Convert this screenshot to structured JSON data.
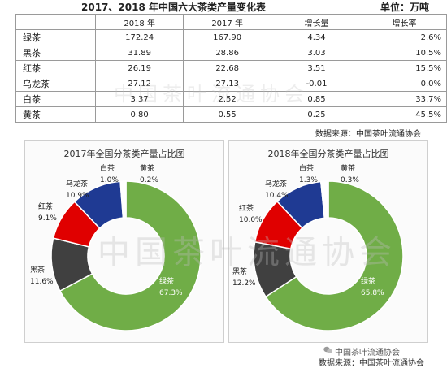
{
  "header": {
    "title": "2017、2018 年中国六大茶类产量变化表",
    "unit": "单位：万吨"
  },
  "table": {
    "columns": [
      "",
      "2018 年",
      "2017 年",
      "增长量",
      "增长率"
    ],
    "rows": [
      [
        "绿茶",
        "172.24",
        "167.90",
        "4.34",
        "2.6%"
      ],
      [
        "黑茶",
        "31.89",
        "28.86",
        "3.03",
        "10.5%"
      ],
      [
        "红茶",
        "26.19",
        "22.68",
        "3.51",
        "15.5%"
      ],
      [
        "乌龙茶",
        "27.12",
        "27.13",
        "-0.01",
        "0.0%"
      ],
      [
        "白茶",
        "3.37",
        "2.52",
        "0.85",
        "33.7%"
      ],
      [
        "黄茶",
        "0.80",
        "0.55",
        "0.25",
        "45.5%"
      ]
    ]
  },
  "source_top": "数据来源：中国茶叶流通协会",
  "watermark": "中国茶叶流通协会",
  "footer": {
    "brand": "中国茶叶流通协会",
    "source": "数据来源：中国茶叶流通协会"
  },
  "colors": {
    "green": "#70ad47",
    "black": "#404040",
    "red": "#e00000",
    "oolong": "#1f3a93",
    "white": "#ffffff",
    "yellow": "#f2c200"
  },
  "chart_data": [
    {
      "type": "pie",
      "title": "2017年全国分茶类产量占比图",
      "slices": [
        {
          "name": "绿茶",
          "value": 67.3,
          "label": "67.3%"
        },
        {
          "name": "黑茶",
          "value": 11.6,
          "label": "11.6%"
        },
        {
          "name": "红茶",
          "value": 9.1,
          "label": "9.1%"
        },
        {
          "name": "乌龙茶",
          "value": 10.9,
          "label": "10.9%"
        },
        {
          "name": "白茶",
          "value": 1.0,
          "label": "1.0%"
        },
        {
          "name": "黄茶",
          "value": 0.2,
          "label": "0.2%"
        }
      ]
    },
    {
      "type": "pie",
      "title": "2018年全国分茶类产量占比图",
      "slices": [
        {
          "name": "绿茶",
          "value": 65.8,
          "label": "65.8%"
        },
        {
          "name": "黑茶",
          "value": 12.2,
          "label": "12.2%"
        },
        {
          "name": "红茶",
          "value": 10.0,
          "label": "10.0%"
        },
        {
          "name": "乌龙茶",
          "value": 10.4,
          "label": "10.4%"
        },
        {
          "name": "白茶",
          "value": 1.3,
          "label": "1.3%"
        },
        {
          "name": "黄茶",
          "value": 0.3,
          "label": "0.3%"
        }
      ]
    }
  ]
}
